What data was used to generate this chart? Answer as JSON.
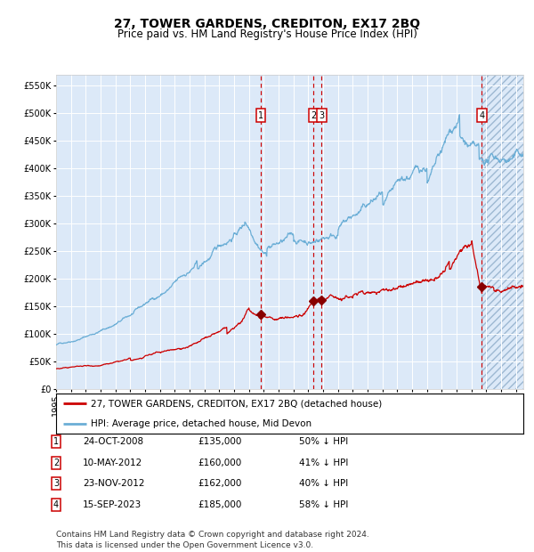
{
  "title": "27, TOWER GARDENS, CREDITON, EX17 2BQ",
  "subtitle": "Price paid vs. HM Land Registry's House Price Index (HPI)",
  "ylim": [
    0,
    570000
  ],
  "yticks": [
    0,
    50000,
    100000,
    150000,
    200000,
    250000,
    300000,
    350000,
    400000,
    450000,
    500000,
    550000
  ],
  "ytick_labels": [
    "£0",
    "£50K",
    "£100K",
    "£150K",
    "£200K",
    "£250K",
    "£300K",
    "£350K",
    "£400K",
    "£450K",
    "£500K",
    "£550K"
  ],
  "xlim_start": 1995.0,
  "xlim_end": 2026.5,
  "plot_bg_color": "#dce9f8",
  "hpi_color": "#6baed6",
  "price_color": "#cc0000",
  "dashed_line_color": "#cc0000",
  "grid_color": "#ffffff",
  "sale_dates": [
    2008.81,
    2012.36,
    2012.9,
    2023.71
  ],
  "sale_prices": [
    135000,
    160000,
    162000,
    185000
  ],
  "sale_labels": [
    "1",
    "2",
    "3",
    "4"
  ],
  "label_entries": [
    {
      "num": "1",
      "date": "24-OCT-2008",
      "price": "£135,000",
      "pct": "50% ↓ HPI"
    },
    {
      "num": "2",
      "date": "10-MAY-2012",
      "price": "£160,000",
      "pct": "41% ↓ HPI"
    },
    {
      "num": "3",
      "date": "23-NOV-2012",
      "price": "£162,000",
      "pct": "40% ↓ HPI"
    },
    {
      "num": "4",
      "date": "15-SEP-2023",
      "price": "£185,000",
      "pct": "58% ↓ HPI"
    }
  ],
  "legend_line1": "27, TOWER GARDENS, CREDITON, EX17 2BQ (detached house)",
  "legend_line2": "HPI: Average price, detached house, Mid Devon",
  "footer": "Contains HM Land Registry data © Crown copyright and database right 2024.\nThis data is licensed under the Open Government Licence v3.0.",
  "title_fontsize": 10,
  "subtitle_fontsize": 8.5,
  "tick_fontsize": 7,
  "legend_fontsize": 7.5,
  "footer_fontsize": 6.5
}
